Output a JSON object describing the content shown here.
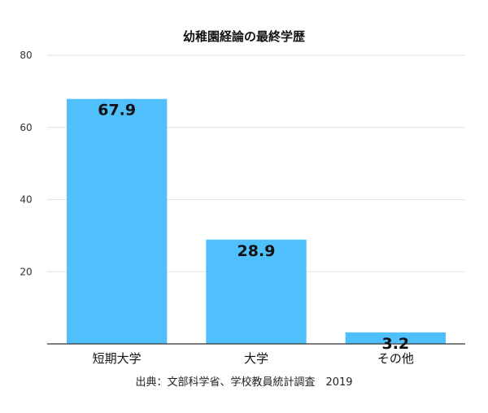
{
  "chart_data": {
    "type": "bar",
    "title": "幼稚園経論の最終学歴",
    "categories": [
      "短期大学",
      "大学",
      "その他"
    ],
    "values": [
      67.9,
      28.9,
      3.2
    ],
    "value_labels": [
      "67.9",
      "28.9",
      "3.2"
    ],
    "ylim": [
      0,
      80
    ],
    "yticks": [
      "20",
      "40",
      "60",
      "80"
    ],
    "ytick_values": [
      20,
      40,
      60,
      80
    ],
    "grid": true,
    "xlabel": "",
    "ylabel": "",
    "bar_color": "#4fc0fc",
    "source": "出典：文部科学省、学校教員統計調査　2019"
  }
}
